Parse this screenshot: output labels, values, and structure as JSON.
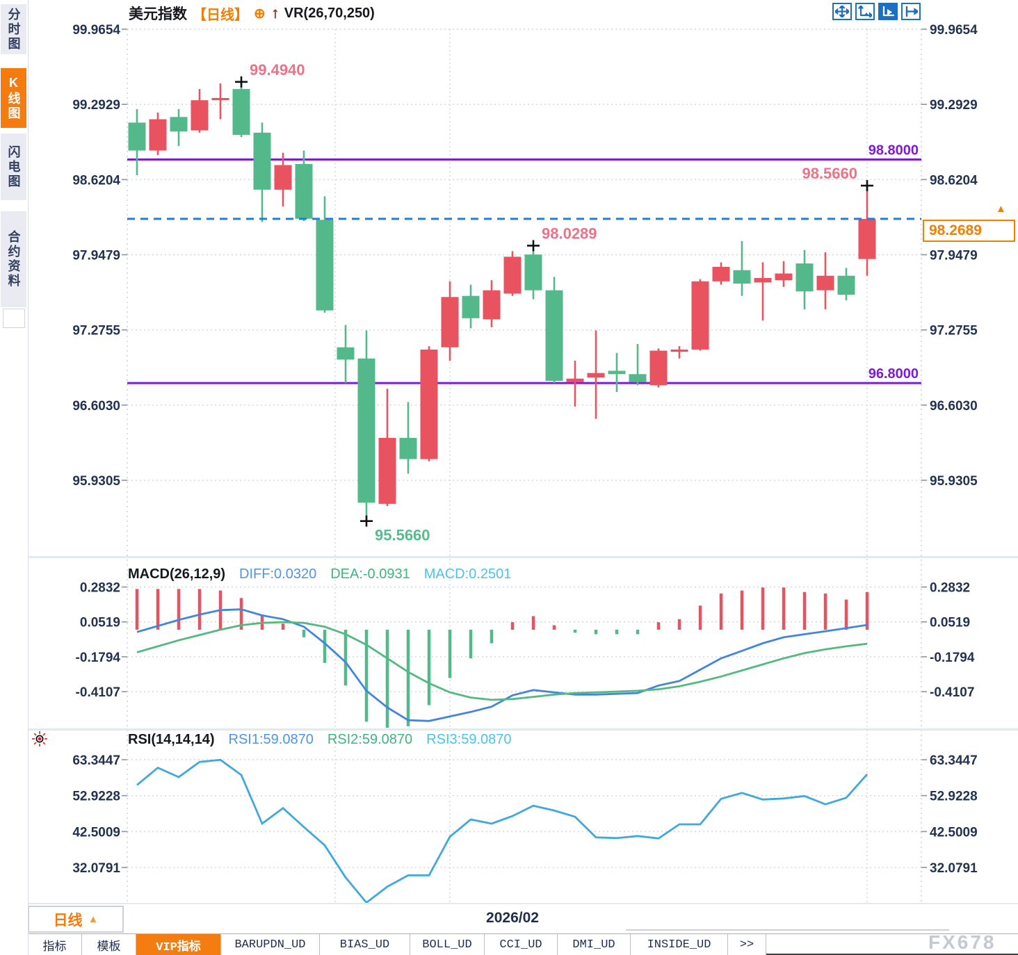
{
  "header": {
    "symbol": "美元指数",
    "period_tag": "【日线】",
    "oplus_icon": "⊕",
    "up_arrow_icon": "↑",
    "vr_label": "VR(26,70,250)"
  },
  "sidebar": {
    "items": [
      {
        "label": "分时图",
        "active": false
      },
      {
        "label": "K线图",
        "active": true
      },
      {
        "label": "闪电图",
        "active": false
      },
      {
        "label": "合约资料",
        "active": false
      }
    ]
  },
  "toolbar": {
    "buttons": [
      "pan-tool",
      "axis-range-tool",
      "axis-auto-tool",
      "shift-right-tool"
    ],
    "active_index": 2
  },
  "price_panel": {
    "current_price_label": "98.2689",
    "current_triangle": "▲",
    "support_resistance": [
      {
        "value": 98.8,
        "label": "98.8000",
        "color": "#7e19e2"
      },
      {
        "value": 96.8,
        "label": "96.8000",
        "color": "#7e19e2"
      }
    ]
  },
  "macd_panel": {
    "title": "MACD(26,12,9)",
    "diff_label": "DIFF:0.0320",
    "dea_label": "DEA:-0.0931",
    "macd_label": "MACD:0.2501"
  },
  "rsi_panel": {
    "title": "RSI(14,14,14)",
    "rsi1_label": "RSI1:59.0870",
    "rsi2_label": "RSI2:59.0870",
    "rsi3_label": "RSI3:59.0870"
  },
  "bottom": {
    "period_button": "日线",
    "period_triangle": "▲",
    "date_label": "2026/02",
    "watermark": "FX678",
    "tabs": [
      {
        "label": "指标",
        "active": false
      },
      {
        "label": "模板",
        "active": false
      },
      {
        "label": "VIP指标",
        "active": true
      },
      {
        "label": "BARUPDN_UD",
        "active": false
      },
      {
        "label": "BIAS_UD",
        "active": false
      },
      {
        "label": "BOLL_UD",
        "active": false
      },
      {
        "label": "CCI_UD",
        "active": false
      },
      {
        "label": "DMI_UD",
        "active": false
      },
      {
        "label": "INSIDE_UD",
        "active": false
      },
      {
        "label": ">>",
        "active": false
      }
    ]
  },
  "chart_data": {
    "type": "candlestick-with-indicators",
    "title": "美元指数 日线 (US Dollar Index, Daily)",
    "price_axis_ticks": [
      99.9654,
      99.2929,
      98.6204,
      97.9479,
      97.2755,
      96.603,
      95.9305
    ],
    "macd_axis_ticks": [
      0.2832,
      0.0519,
      -0.1794,
      -0.4107
    ],
    "rsi_axis_ticks": [
      63.3447,
      52.9228,
      42.5009,
      32.0791
    ],
    "current_price": 98.2689,
    "time_gridline_indices": [
      9.5,
      15,
      35
    ],
    "x_axis_label": "2026/02",
    "candles": {
      "open": [
        99.13,
        98.88,
        99.18,
        99.06,
        99.33,
        99.43,
        99.04,
        98.53,
        98.76,
        98.26,
        97.12,
        97.02,
        95.72,
        96.31,
        96.12,
        97.12,
        97.58,
        97.37,
        97.6,
        97.95,
        97.63,
        96.81,
        96.85,
        96.91,
        96.88,
        96.78,
        97.08,
        97.1,
        97.71,
        97.81,
        97.7,
        97.72,
        97.87,
        97.63,
        97.76,
        97.91
      ],
      "high": [
        99.25,
        99.22,
        99.25,
        99.43,
        99.48,
        99.494,
        99.13,
        98.86,
        98.88,
        98.47,
        97.32,
        97.27,
        96.75,
        96.63,
        97.13,
        97.71,
        97.68,
        97.72,
        97.98,
        98.029,
        97.75,
        97.0,
        97.27,
        97.07,
        97.15,
        97.11,
        97.13,
        97.73,
        97.88,
        98.07,
        97.88,
        97.89,
        97.99,
        97.97,
        97.83,
        98.566
      ],
      "low": [
        98.66,
        98.84,
        98.92,
        99.04,
        99.16,
        99.0,
        98.24,
        98.38,
        98.25,
        97.43,
        96.8,
        95.566,
        95.7,
        95.99,
        96.1,
        97.0,
        97.29,
        97.3,
        97.58,
        97.55,
        96.8,
        96.59,
        96.48,
        96.72,
        96.78,
        96.76,
        97.02,
        97.09,
        97.68,
        97.58,
        97.36,
        97.66,
        97.46,
        97.46,
        97.54,
        97.76
      ],
      "close": [
        98.88,
        99.16,
        99.05,
        99.33,
        99.35,
        99.02,
        98.53,
        98.75,
        98.27,
        97.45,
        97.01,
        95.73,
        96.31,
        96.12,
        97.1,
        97.57,
        97.38,
        97.63,
        97.93,
        97.63,
        96.82,
        96.84,
        96.89,
        96.88,
        96.81,
        97.09,
        97.1,
        97.71,
        97.84,
        97.69,
        97.74,
        97.78,
        97.62,
        97.76,
        97.59,
        98.2689
      ]
    },
    "markers": [
      {
        "index": 5,
        "pos": "high",
        "text": "99.4940",
        "color": "#ee7287"
      },
      {
        "index": 11,
        "pos": "low",
        "text": "95.5660",
        "color": "#57bb8d"
      },
      {
        "index": 19,
        "pos": "high",
        "text": "98.0289",
        "color": "#ee7287"
      },
      {
        "index": 35,
        "pos": "high",
        "text": "98.5660",
        "color": "#ee7287",
        "align": "end"
      }
    ],
    "macd": {
      "hist": [
        0.27,
        0.27,
        0.27,
        0.27,
        0.26,
        0.21,
        0.1,
        0.04,
        -0.05,
        -0.22,
        -0.37,
        -0.61,
        -0.65,
        -0.64,
        -0.5,
        -0.32,
        -0.19,
        -0.09,
        0.05,
        0.09,
        0.03,
        -0.02,
        -0.03,
        -0.03,
        -0.03,
        0.05,
        0.07,
        0.16,
        0.24,
        0.26,
        0.28,
        0.28,
        0.25,
        0.24,
        0.2,
        0.2501
      ],
      "diff": [
        -0.015,
        0.025,
        0.065,
        0.1,
        0.13,
        0.135,
        0.095,
        0.07,
        0.02,
        -0.09,
        -0.215,
        -0.405,
        -0.515,
        -0.6,
        -0.605,
        -0.575,
        -0.545,
        -0.51,
        -0.435,
        -0.4,
        -0.415,
        -0.43,
        -0.43,
        -0.425,
        -0.42,
        -0.37,
        -0.34,
        -0.265,
        -0.19,
        -0.14,
        -0.09,
        -0.05,
        -0.03,
        -0.01,
        0.01,
        0.032
      ],
      "dea": [
        -0.15,
        -0.11,
        -0.07,
        -0.035,
        0.0,
        0.03,
        0.045,
        0.05,
        0.045,
        0.02,
        -0.03,
        -0.1,
        -0.19,
        -0.28,
        -0.355,
        -0.415,
        -0.45,
        -0.465,
        -0.46,
        -0.445,
        -0.43,
        -0.42,
        -0.415,
        -0.41,
        -0.405,
        -0.395,
        -0.375,
        -0.345,
        -0.31,
        -0.27,
        -0.23,
        -0.19,
        -0.155,
        -0.13,
        -0.11,
        -0.093
      ]
    },
    "rsi": [
      56.0,
      61.0,
      58.3,
      62.7,
      63.3,
      58.9,
      44.8,
      49.3,
      43.8,
      38.5,
      29.2,
      21.9,
      26.5,
      29.8,
      29.8,
      41.0,
      46.0,
      44.8,
      47.0,
      50.0,
      48.6,
      46.8,
      40.8,
      40.6,
      41.2,
      40.5,
      44.6,
      44.6,
      52.0,
      53.7,
      51.8,
      52.1,
      52.8,
      50.4,
      52.3,
      59.087
    ],
    "colors": {
      "up": "#e95360",
      "down": "#53b98a",
      "diff_line": "#4285e0",
      "dea_line": "#53b981",
      "rsi_line": "#3fa8dc",
      "grid": "#d6d6d6",
      "axis_text": "#233250",
      "current_line": "#1f7fdb",
      "level_line": "#7e19e2",
      "accent": "#f57d00"
    }
  }
}
